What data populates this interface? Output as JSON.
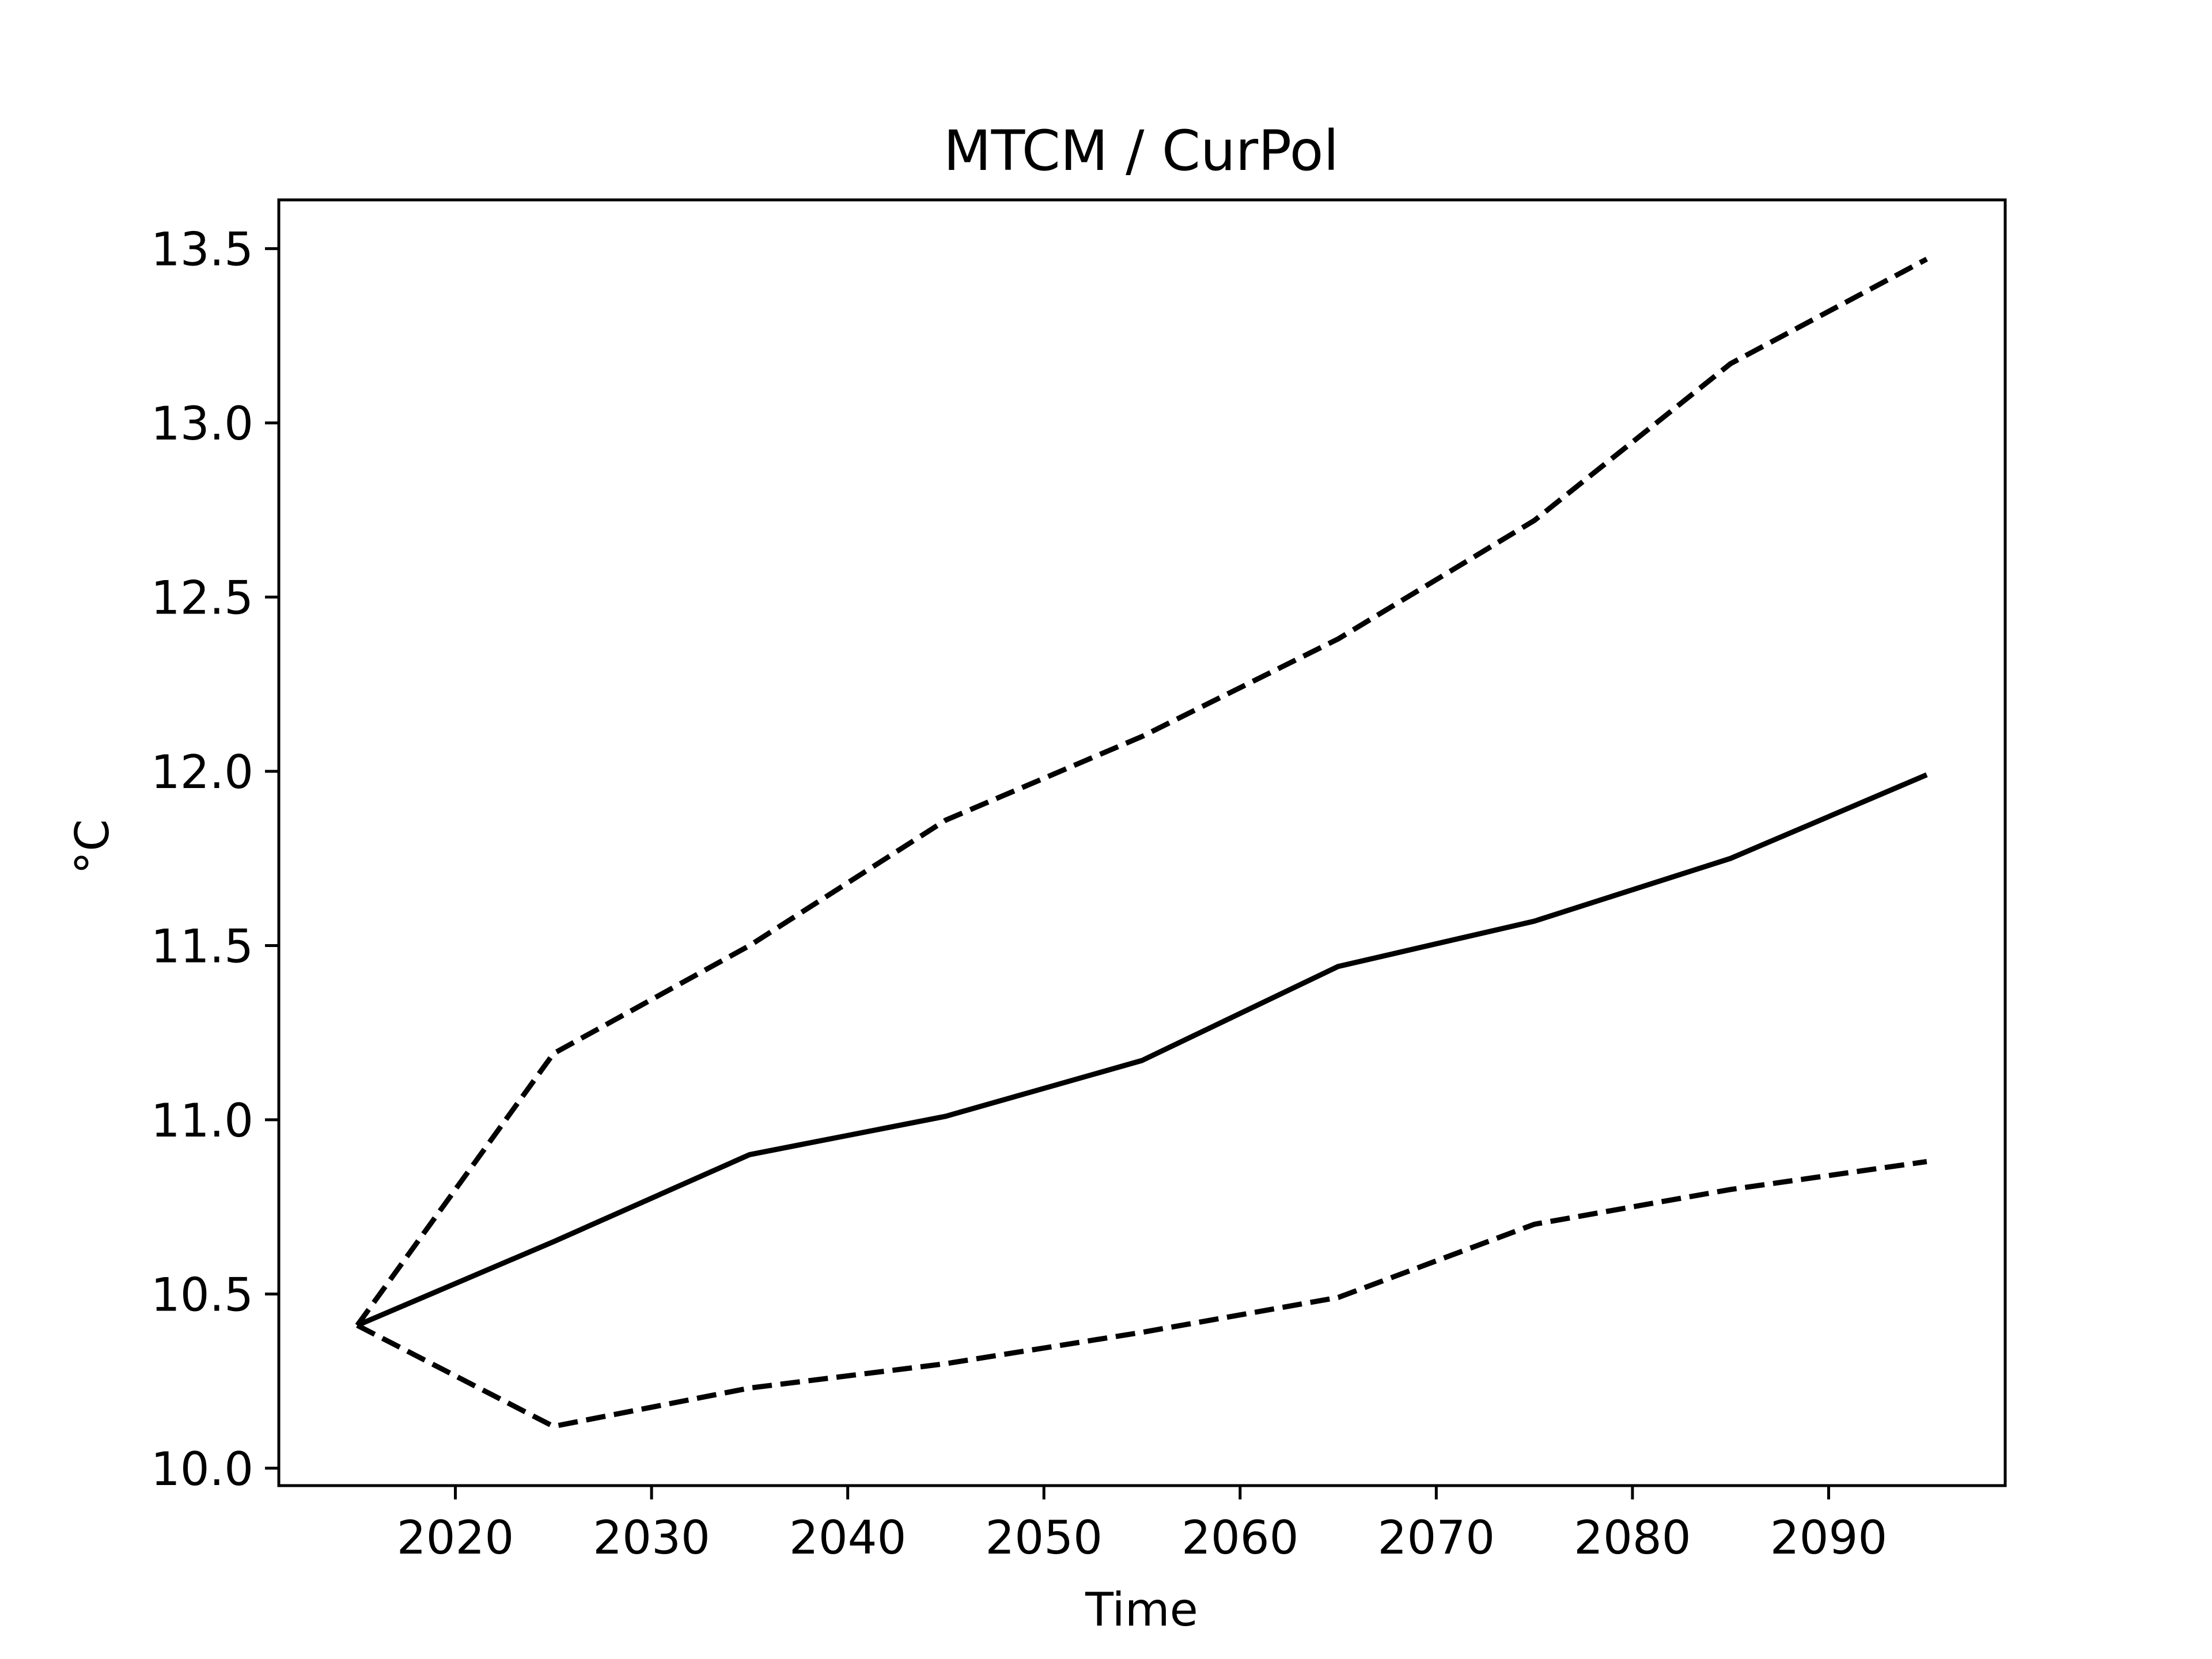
{
  "chart_data": {
    "type": "line",
    "title": "MTCM / CurPol",
    "xlabel": "Time",
    "ylabel": "°C",
    "xlim": [
      2011,
      2099
    ],
    "ylim": [
      9.95,
      13.64
    ],
    "xticks": [
      2020,
      2030,
      2040,
      2050,
      2060,
      2070,
      2080,
      2090
    ],
    "yticks": [
      10.0,
      10.5,
      11.0,
      11.5,
      12.0,
      12.5,
      13.0,
      13.5
    ],
    "ytick_labels": [
      "10.0",
      "10.5",
      "11.0",
      "11.5",
      "12.0",
      "12.5",
      "13.0",
      "13.5"
    ],
    "grid": false,
    "line_color": "#000000",
    "x": [
      2015,
      2025,
      2035,
      2045,
      2055,
      2065,
      2075,
      2085,
      2095
    ],
    "series": [
      {
        "style": "solid",
        "values": [
          10.41,
          10.65,
          10.9,
          11.01,
          11.17,
          11.44,
          11.57,
          11.75,
          11.99
        ]
      },
      {
        "style": "dashed",
        "values": [
          10.41,
          11.19,
          11.5,
          11.86,
          12.1,
          12.38,
          12.72,
          13.17,
          13.47
        ]
      },
      {
        "style": "dashed",
        "values": [
          10.41,
          10.12,
          10.23,
          10.3,
          10.39,
          10.49,
          10.7,
          10.8,
          10.88
        ]
      }
    ]
  }
}
